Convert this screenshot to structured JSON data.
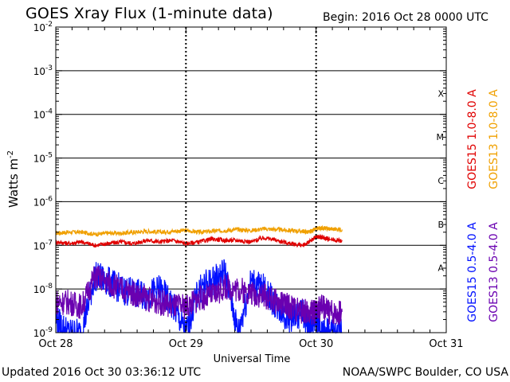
{
  "header": {
    "title": "GOES Xray Flux (1-minute data)",
    "begin": "Begin:  2016 Oct 28 0000 UTC"
  },
  "footer": {
    "updated": "Updated 2016 Oct 30 03:36:12 UTC",
    "credit": "NOAA/SWPC Boulder, CO USA"
  },
  "chart_data": {
    "type": "line",
    "title": "GOES Xray Flux (1-minute data)",
    "xlabel": "Universal Time",
    "ylabel": "Watts m",
    "ylabel_sup": "-2",
    "y_scale": "log",
    "ylim": [
      1e-09,
      0.01
    ],
    "xlim_days": [
      0,
      3
    ],
    "x_ticks": [
      "Oct 28",
      "Oct 29",
      "Oct 30",
      "Oct 31"
    ],
    "y_ticks": [
      {
        "base": "10",
        "exp": "-9"
      },
      {
        "base": "10",
        "exp": "-8"
      },
      {
        "base": "10",
        "exp": "-7"
      },
      {
        "base": "10",
        "exp": "-6"
      },
      {
        "base": "10",
        "exp": "-5"
      },
      {
        "base": "10",
        "exp": "-4"
      },
      {
        "base": "10",
        "exp": "-3"
      },
      {
        "base": "10",
        "exp": "-2"
      }
    ],
    "flare_classes": [
      "A",
      "B",
      "C",
      "M",
      "X"
    ],
    "grid": true,
    "data_gap_days": 2.0,
    "series": [
      {
        "name": "GOES13 1.0-8.0 A",
        "color": "#f0a000",
        "x": [
          0,
          0.1,
          0.2,
          0.3,
          0.4,
          0.5,
          0.6,
          0.7,
          0.8,
          0.9,
          1.0,
          1.1,
          1.2,
          1.3,
          1.4,
          1.5,
          1.6,
          1.7,
          1.8,
          1.9,
          1.95,
          2.0,
          2.05,
          2.1,
          2.2
        ],
        "y": [
          1.9e-07,
          2e-07,
          2e-07,
          1.8e-07,
          1.9e-07,
          1.9e-07,
          2e-07,
          2.1e-07,
          2e-07,
          2.1e-07,
          2.2e-07,
          2e-07,
          2.1e-07,
          2.2e-07,
          2.3e-07,
          2.2e-07,
          2.4e-07,
          2.3e-07,
          2.2e-07,
          2.1e-07,
          2e-07,
          2.4e-07,
          2.5e-07,
          2.4e-07,
          2.3e-07
        ]
      },
      {
        "name": "GOES15 1.0-8.0 A",
        "color": "#e00000",
        "x": [
          0,
          0.1,
          0.2,
          0.3,
          0.4,
          0.5,
          0.6,
          0.7,
          0.8,
          0.9,
          1.0,
          1.1,
          1.2,
          1.3,
          1.4,
          1.5,
          1.6,
          1.7,
          1.8,
          1.9,
          1.95,
          2.0,
          2.05,
          2.1,
          2.2
        ],
        "y": [
          1.2e-07,
          1.1e-07,
          1.2e-07,
          1e-07,
          1.1e-07,
          1.2e-07,
          1.1e-07,
          1.3e-07,
          1.2e-07,
          1.3e-07,
          1.1e-07,
          1.2e-07,
          1.4e-07,
          1.3e-07,
          1.3e-07,
          1.2e-07,
          1.5e-07,
          1.3e-07,
          1.1e-07,
          1e-07,
          1.2e-07,
          1.6e-07,
          1.5e-07,
          1.4e-07,
          1.25e-07
        ]
      },
      {
        "name": "GOES15 0.5-4.0 A",
        "color": "#0010ff",
        "x": [
          0,
          0.1,
          0.2,
          0.3,
          0.4,
          0.5,
          0.6,
          0.7,
          0.8,
          0.9,
          1.0,
          1.1,
          1.2,
          1.3,
          1.4,
          1.5,
          1.6,
          1.7,
          1.8,
          1.9,
          1.95,
          2.0,
          2.05,
          2.1,
          2.2
        ],
        "y": [
          2e-09,
          1e-09,
          1e-09,
          2e-08,
          1.5e-08,
          1e-08,
          8e-09,
          7e-09,
          1e-08,
          4e-09,
          1e-09,
          1e-08,
          1.5e-08,
          2.5e-08,
          1e-09,
          1.5e-08,
          1e-08,
          4e-09,
          2e-09,
          3e-09,
          1e-09,
          2e-09,
          1e-09,
          1e-09,
          1e-09
        ]
      },
      {
        "name": "GOES13 0.5-4.0 A",
        "color": "#6a00b0",
        "x": [
          0,
          0.1,
          0.2,
          0.3,
          0.4,
          0.5,
          0.6,
          0.7,
          0.8,
          0.9,
          1.0,
          1.1,
          1.2,
          1.3,
          1.4,
          1.5,
          1.6,
          1.7,
          1.8,
          1.9,
          1.95,
          2.0,
          2.05,
          2.1,
          2.2
        ],
        "y": [
          5e-09,
          5e-09,
          4e-09,
          2e-08,
          1.4e-08,
          1e-08,
          8e-09,
          6e-09,
          5e-09,
          4e-09,
          4e-09,
          6e-09,
          7e-09,
          1.1e-08,
          1e-08,
          8e-09,
          7e-09,
          5e-09,
          4e-09,
          3e-09,
          3e-09,
          3e-09,
          4e-09,
          3e-09,
          3e-09
        ]
      }
    ]
  }
}
